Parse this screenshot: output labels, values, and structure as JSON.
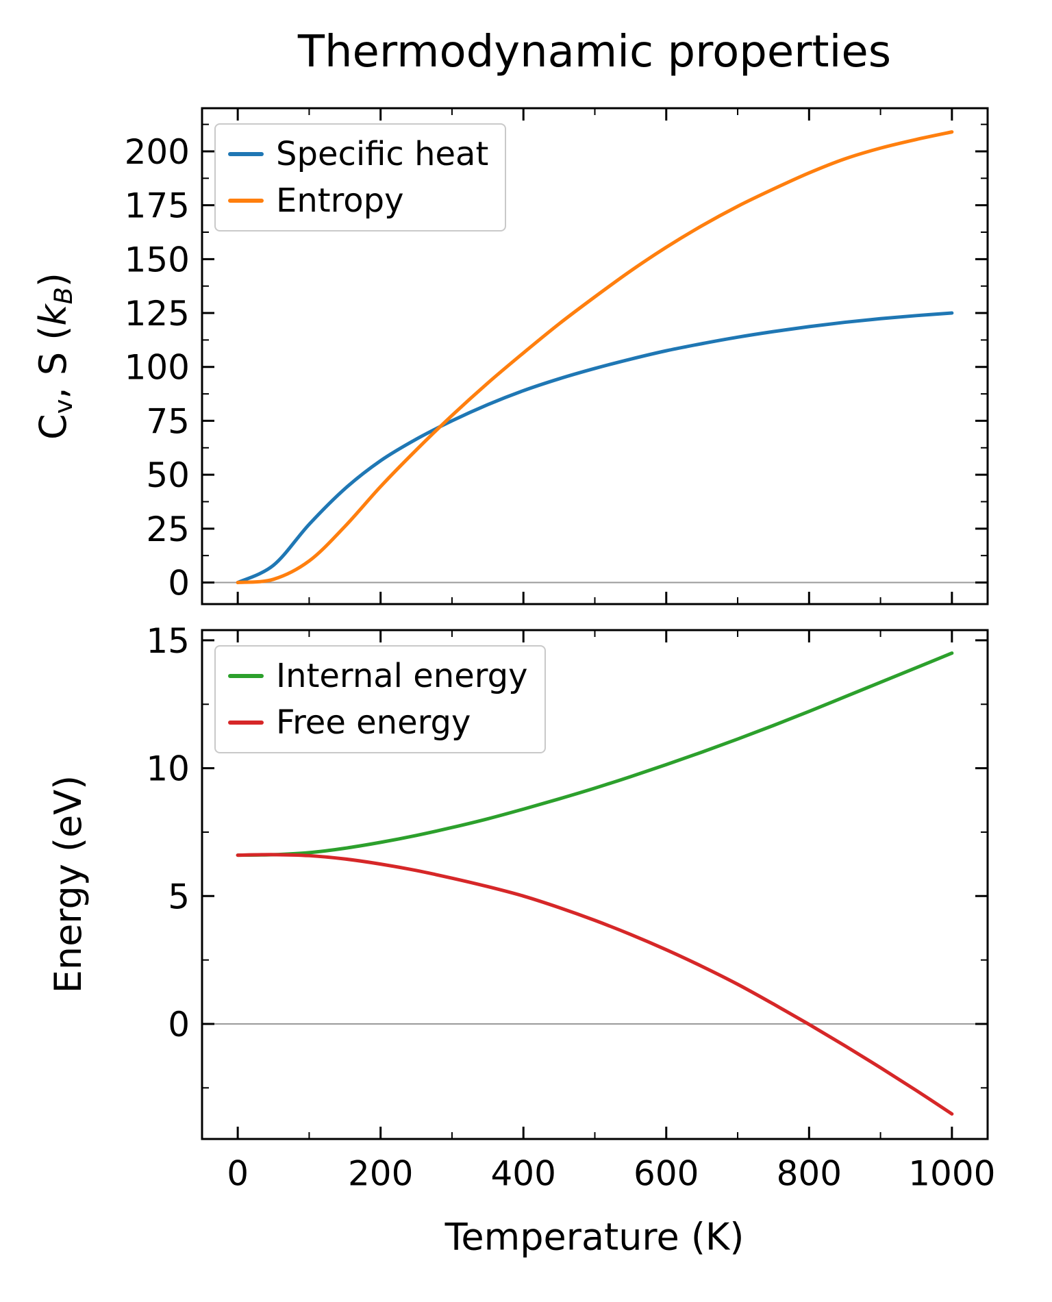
{
  "figure": {
    "title": "Thermodynamic properties",
    "background_color": "#ffffff",
    "spine_color": "#000000",
    "zero_line_color": "#9a9a9a"
  },
  "chart_data": [
    {
      "type": "line",
      "title": "Thermodynamic properties",
      "xlabel": "",
      "ylabel": "C_v, S (k_B)",
      "ylabel_rich": [
        {
          "t": "C"
        },
        {
          "t": "v",
          "s": "sub"
        },
        {
          "t": ", S ("
        },
        {
          "t": "k",
          "s": "i"
        },
        {
          "t": "B",
          "s": "subi"
        },
        {
          "t": ")"
        }
      ],
      "xlim": [
        -50,
        1050
      ],
      "ylim": [
        -10,
        220
      ],
      "xticks": [
        0,
        200,
        400,
        600,
        800,
        1000
      ],
      "xticklabels": [],
      "show_xticklabels": false,
      "xminorticks": [
        100,
        300,
        500,
        700,
        900
      ],
      "yticks": [
        0,
        25,
        50,
        75,
        100,
        125,
        150,
        175,
        200
      ],
      "yticklabels": [
        "0",
        "25",
        "50",
        "75",
        "100",
        "125",
        "150",
        "175",
        "200"
      ],
      "yminorticks": [
        12.5,
        37.5,
        62.5,
        87.5,
        112.5,
        137.5,
        162.5,
        187.5,
        212.5
      ],
      "zero_line": 0,
      "grid": false,
      "legend_loc": "upper left",
      "x": [
        0,
        50,
        100,
        150,
        200,
        250,
        300,
        350,
        400,
        450,
        500,
        550,
        600,
        650,
        700,
        750,
        800,
        850,
        900,
        950,
        1000
      ],
      "series": [
        {
          "name": "Specific heat",
          "color": "#1f77b4",
          "values": [
            0,
            8,
            27,
            43.5,
            56.5,
            66.5,
            75,
            82.5,
            89,
            94.5,
            99.3,
            103.6,
            107.5,
            110.8,
            113.8,
            116.4,
            118.7,
            120.7,
            122.4,
            123.8,
            125
          ]
        },
        {
          "name": "Entropy",
          "color": "#ff7f0e",
          "values": [
            0,
            1.5,
            10,
            26,
            44.5,
            61.5,
            77.5,
            92.5,
            106.5,
            120,
            132.5,
            144.5,
            155.5,
            165.5,
            174.5,
            182.5,
            190,
            196.5,
            201.5,
            205.5,
            209
          ]
        }
      ]
    },
    {
      "type": "line",
      "title": "",
      "xlabel": "Temperature (K)",
      "ylabel": "Energy (eV)",
      "xlim": [
        -50,
        1050
      ],
      "ylim": [
        -4.5,
        15.4
      ],
      "xticks": [
        0,
        200,
        400,
        600,
        800,
        1000
      ],
      "xticklabels": [
        "0",
        "200",
        "400",
        "600",
        "800",
        "1000"
      ],
      "show_xticklabels": true,
      "xminorticks": [
        100,
        300,
        500,
        700,
        900
      ],
      "yticks": [
        0,
        5,
        10,
        15
      ],
      "yticklabels": [
        "0",
        "5",
        "10",
        "15"
      ],
      "yminorticks": [
        -2.5,
        2.5,
        7.5,
        12.5
      ],
      "zero_line": 0,
      "grid": false,
      "legend_loc": "upper left",
      "x": [
        0,
        50,
        100,
        150,
        200,
        250,
        300,
        350,
        400,
        450,
        500,
        550,
        600,
        650,
        700,
        750,
        800,
        850,
        900,
        950,
        1000
      ],
      "series": [
        {
          "name": "Internal energy",
          "color": "#2ca02c",
          "values": [
            6.6,
            6.62,
            6.7,
            6.87,
            7.1,
            7.37,
            7.68,
            8.02,
            8.4,
            8.8,
            9.22,
            9.67,
            10.14,
            10.63,
            11.14,
            11.67,
            12.22,
            12.79,
            13.36,
            13.93,
            14.5
          ]
        },
        {
          "name": "Free energy",
          "color": "#d62728",
          "values": [
            6.6,
            6.62,
            6.58,
            6.45,
            6.25,
            6.0,
            5.7,
            5.37,
            5.0,
            4.55,
            4.05,
            3.5,
            2.9,
            2.25,
            1.55,
            0.78,
            -0.02,
            -0.85,
            -1.71,
            -2.6,
            -3.52
          ]
        }
      ]
    }
  ]
}
